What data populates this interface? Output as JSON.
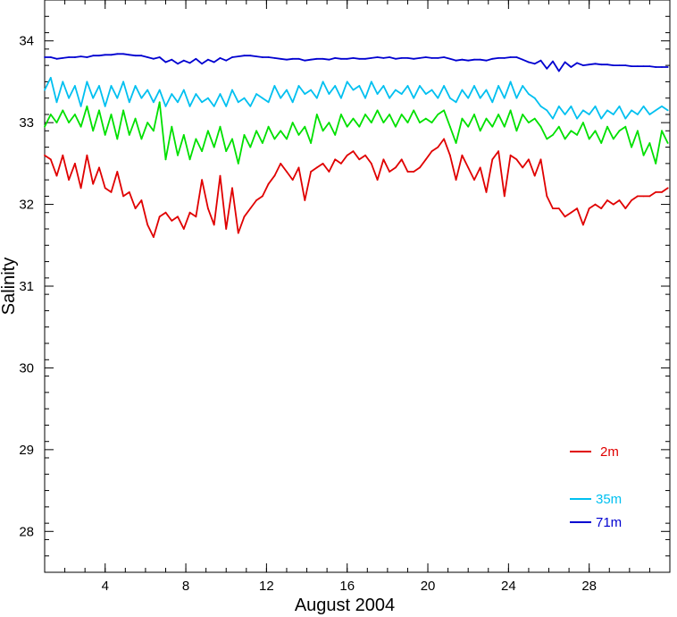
{
  "chart_data": {
    "type": "line",
    "title": "",
    "xlabel": "August 2004",
    "ylabel": "Salinity",
    "xlim": [
      1,
      32
    ],
    "ylim": [
      27.5,
      34.5
    ],
    "grid": false,
    "x_ticks": [
      4,
      8,
      12,
      16,
      20,
      24,
      28
    ],
    "x_tick_labels": [
      "4",
      "8",
      "12",
      "16",
      "20",
      "24",
      "28"
    ],
    "y_ticks": [
      28,
      29,
      30,
      31,
      32,
      33,
      34
    ],
    "y_tick_labels": [
      "28",
      "29",
      "30",
      "31",
      "32",
      "33",
      "34"
    ],
    "legend_position": "bottom-right",
    "series": [
      {
        "name": "2m",
        "color": "#e00000",
        "x": [
          1.0,
          1.3,
          1.6,
          1.9,
          2.2,
          2.5,
          2.8,
          3.1,
          3.4,
          3.7,
          4.0,
          4.3,
          4.6,
          4.9,
          5.2,
          5.5,
          5.8,
          6.1,
          6.4,
          6.7,
          7.0,
          7.3,
          7.6,
          7.9,
          8.2,
          8.5,
          8.8,
          9.1,
          9.4,
          9.7,
          10.0,
          10.3,
          10.6,
          10.9,
          11.2,
          11.5,
          11.8,
          12.1,
          12.4,
          12.7,
          13.0,
          13.3,
          13.6,
          13.9,
          14.2,
          14.5,
          14.8,
          15.1,
          15.4,
          15.7,
          16.0,
          16.3,
          16.6,
          16.9,
          17.2,
          17.5,
          17.8,
          18.1,
          18.4,
          18.7,
          19.0,
          19.3,
          19.6,
          19.9,
          20.2,
          20.5,
          20.8,
          21.1,
          21.4,
          21.7,
          22.0,
          22.3,
          22.6,
          22.9,
          23.2,
          23.5,
          23.8,
          24.1,
          24.4,
          24.7,
          25.0,
          25.3,
          25.6,
          25.9,
          26.2,
          26.5,
          26.8,
          27.1,
          27.4,
          27.7,
          28.0,
          28.3,
          28.6,
          28.9,
          29.2,
          29.5,
          29.8,
          30.1,
          30.4,
          30.7,
          31.0,
          31.3,
          31.6,
          31.9
        ],
        "values": [
          32.6,
          32.55,
          32.35,
          32.6,
          32.3,
          32.5,
          32.2,
          32.6,
          32.25,
          32.45,
          32.2,
          32.15,
          32.4,
          32.1,
          32.15,
          31.95,
          32.05,
          31.75,
          31.6,
          31.85,
          31.9,
          31.8,
          31.85,
          31.7,
          31.9,
          31.85,
          32.3,
          31.95,
          31.75,
          32.35,
          31.7,
          32.2,
          31.65,
          31.85,
          31.95,
          32.05,
          32.1,
          32.25,
          32.35,
          32.5,
          32.4,
          32.3,
          32.45,
          32.05,
          32.4,
          32.45,
          32.5,
          32.4,
          32.55,
          32.5,
          32.6,
          32.65,
          32.55,
          32.6,
          32.5,
          32.3,
          32.55,
          32.4,
          32.45,
          32.55,
          32.4,
          32.4,
          32.45,
          32.55,
          32.65,
          32.7,
          32.8,
          32.6,
          32.3,
          32.6,
          32.45,
          32.3,
          32.45,
          32.15,
          32.55,
          32.65,
          32.1,
          32.6,
          32.55,
          32.45,
          32.55,
          32.35,
          32.55,
          32.1,
          31.95,
          31.95,
          31.85,
          31.9,
          31.95,
          31.75,
          31.95,
          32.0,
          31.95,
          32.05,
          32.0,
          32.05,
          31.95,
          32.05,
          32.1,
          32.1,
          32.1,
          32.15,
          32.15,
          32.2
        ]
      },
      {
        "name": "35m",
        "color": "#00c0f0",
        "x": [
          1.0,
          1.3,
          1.6,
          1.9,
          2.2,
          2.5,
          2.8,
          3.1,
          3.4,
          3.7,
          4.0,
          4.3,
          4.6,
          4.9,
          5.2,
          5.5,
          5.8,
          6.1,
          6.4,
          6.7,
          7.0,
          7.3,
          7.6,
          7.9,
          8.2,
          8.5,
          8.8,
          9.1,
          9.4,
          9.7,
          10.0,
          10.3,
          10.6,
          10.9,
          11.2,
          11.5,
          11.8,
          12.1,
          12.4,
          12.7,
          13.0,
          13.3,
          13.6,
          13.9,
          14.2,
          14.5,
          14.8,
          15.1,
          15.4,
          15.7,
          16.0,
          16.3,
          16.6,
          16.9,
          17.2,
          17.5,
          17.8,
          18.1,
          18.4,
          18.7,
          19.0,
          19.3,
          19.6,
          19.9,
          20.2,
          20.5,
          20.8,
          21.1,
          21.4,
          21.7,
          22.0,
          22.3,
          22.6,
          22.9,
          23.2,
          23.5,
          23.8,
          24.1,
          24.4,
          24.7,
          25.0,
          25.3,
          25.6,
          25.9,
          26.2,
          26.5,
          26.8,
          27.1,
          27.4,
          27.7,
          28.0,
          28.3,
          28.6,
          28.9,
          29.2,
          29.5,
          29.8,
          30.1,
          30.4,
          30.7,
          31.0,
          31.3,
          31.6,
          31.9
        ],
        "values": [
          33.4,
          33.55,
          33.25,
          33.5,
          33.3,
          33.45,
          33.2,
          33.5,
          33.3,
          33.45,
          33.2,
          33.45,
          33.3,
          33.5,
          33.25,
          33.45,
          33.3,
          33.4,
          33.25,
          33.4,
          33.2,
          33.35,
          33.25,
          33.4,
          33.2,
          33.35,
          33.25,
          33.3,
          33.2,
          33.35,
          33.2,
          33.4,
          33.25,
          33.3,
          33.2,
          33.35,
          33.3,
          33.25,
          33.45,
          33.3,
          33.4,
          33.25,
          33.45,
          33.35,
          33.4,
          33.3,
          33.5,
          33.35,
          33.45,
          33.3,
          33.5,
          33.4,
          33.45,
          33.3,
          33.5,
          33.35,
          33.45,
          33.3,
          33.4,
          33.35,
          33.45,
          33.3,
          33.45,
          33.35,
          33.4,
          33.3,
          33.45,
          33.3,
          33.25,
          33.4,
          33.3,
          33.45,
          33.3,
          33.4,
          33.25,
          33.45,
          33.3,
          33.5,
          33.3,
          33.45,
          33.35,
          33.3,
          33.2,
          33.15,
          33.05,
          33.2,
          33.1,
          33.2,
          33.05,
          33.15,
          33.1,
          33.2,
          33.05,
          33.15,
          33.1,
          33.2,
          33.05,
          33.15,
          33.1,
          33.2,
          33.1,
          33.15,
          33.2,
          33.15
        ]
      },
      {
        "name": "",
        "color": "#00e000",
        "x": [
          1.0,
          1.3,
          1.6,
          1.9,
          2.2,
          2.5,
          2.8,
          3.1,
          3.4,
          3.7,
          4.0,
          4.3,
          4.6,
          4.9,
          5.2,
          5.5,
          5.8,
          6.1,
          6.4,
          6.7,
          7.0,
          7.3,
          7.6,
          7.9,
          8.2,
          8.5,
          8.8,
          9.1,
          9.4,
          9.7,
          10.0,
          10.3,
          10.6,
          10.9,
          11.2,
          11.5,
          11.8,
          12.1,
          12.4,
          12.7,
          13.0,
          13.3,
          13.6,
          13.9,
          14.2,
          14.5,
          14.8,
          15.1,
          15.4,
          15.7,
          16.0,
          16.3,
          16.6,
          16.9,
          17.2,
          17.5,
          17.8,
          18.1,
          18.4,
          18.7,
          19.0,
          19.3,
          19.6,
          19.9,
          20.2,
          20.5,
          20.8,
          21.1,
          21.4,
          21.7,
          22.0,
          22.3,
          22.6,
          22.9,
          23.2,
          23.5,
          23.8,
          24.1,
          24.4,
          24.7,
          25.0,
          25.3,
          25.6,
          25.9,
          26.2,
          26.5,
          26.8,
          27.1,
          27.4,
          27.7,
          28.0,
          28.3,
          28.6,
          28.9,
          29.2,
          29.5,
          29.8,
          30.1,
          30.4,
          30.7,
          31.0,
          31.3,
          31.6,
          31.9
        ],
        "values": [
          32.95,
          33.1,
          33.0,
          33.15,
          33.0,
          33.1,
          32.95,
          33.2,
          32.9,
          33.15,
          32.85,
          33.1,
          32.8,
          33.15,
          32.85,
          33.05,
          32.8,
          33.0,
          32.9,
          33.25,
          32.55,
          32.95,
          32.6,
          32.85,
          32.55,
          32.8,
          32.65,
          32.9,
          32.7,
          32.95,
          32.65,
          32.8,
          32.5,
          32.85,
          32.7,
          32.9,
          32.75,
          32.95,
          32.8,
          32.9,
          32.8,
          33.0,
          32.85,
          32.95,
          32.75,
          33.1,
          32.9,
          33.0,
          32.85,
          33.1,
          32.95,
          33.05,
          32.95,
          33.1,
          33.0,
          33.15,
          33.0,
          33.1,
          32.95,
          33.1,
          33.0,
          33.15,
          33.0,
          33.05,
          33.0,
          33.1,
          33.15,
          32.95,
          32.75,
          33.05,
          32.95,
          33.1,
          32.9,
          33.05,
          32.95,
          33.1,
          32.95,
          33.15,
          32.9,
          33.1,
          33.0,
          33.05,
          32.95,
          32.8,
          32.85,
          32.95,
          32.8,
          32.9,
          32.85,
          33.0,
          32.8,
          32.9,
          32.75,
          32.95,
          32.8,
          32.9,
          32.95,
          32.7,
          32.9,
          32.6,
          32.75,
          32.5,
          32.9,
          32.75
        ]
      },
      {
        "name": "71m",
        "color": "#0000d0",
        "x": [
          1.0,
          1.3,
          1.6,
          1.9,
          2.2,
          2.5,
          2.8,
          3.1,
          3.4,
          3.7,
          4.0,
          4.3,
          4.6,
          4.9,
          5.2,
          5.5,
          5.8,
          6.1,
          6.4,
          6.7,
          7.0,
          7.3,
          7.6,
          7.9,
          8.2,
          8.5,
          8.8,
          9.1,
          9.4,
          9.7,
          10.0,
          10.3,
          10.6,
          10.9,
          11.2,
          11.5,
          11.8,
          12.1,
          12.4,
          12.7,
          13.0,
          13.3,
          13.6,
          13.9,
          14.2,
          14.5,
          14.8,
          15.1,
          15.4,
          15.7,
          16.0,
          16.3,
          16.6,
          16.9,
          17.2,
          17.5,
          17.8,
          18.1,
          18.4,
          18.7,
          19.0,
          19.3,
          19.6,
          19.9,
          20.2,
          20.5,
          20.8,
          21.1,
          21.4,
          21.7,
          22.0,
          22.3,
          22.6,
          22.9,
          23.2,
          23.5,
          23.8,
          24.1,
          24.4,
          24.7,
          25.0,
          25.3,
          25.6,
          25.9,
          26.2,
          26.5,
          26.8,
          27.1,
          27.4,
          27.7,
          28.0,
          28.3,
          28.6,
          28.9,
          29.2,
          29.5,
          29.8,
          30.1,
          30.4,
          30.7,
          31.0,
          31.3,
          31.6,
          31.9
        ],
        "values": [
          33.8,
          33.8,
          33.78,
          33.79,
          33.8,
          33.8,
          33.81,
          33.8,
          33.82,
          33.82,
          33.83,
          33.83,
          33.84,
          33.84,
          33.83,
          33.82,
          33.82,
          33.8,
          33.78,
          33.8,
          33.74,
          33.77,
          33.72,
          33.76,
          33.73,
          33.78,
          33.72,
          33.77,
          33.74,
          33.79,
          33.76,
          33.8,
          33.81,
          33.82,
          33.82,
          33.81,
          33.8,
          33.8,
          33.79,
          33.78,
          33.77,
          33.78,
          33.78,
          33.76,
          33.77,
          33.78,
          33.78,
          33.77,
          33.79,
          33.78,
          33.78,
          33.79,
          33.78,
          33.78,
          33.79,
          33.8,
          33.79,
          33.8,
          33.78,
          33.79,
          33.79,
          33.78,
          33.79,
          33.8,
          33.79,
          33.79,
          33.8,
          33.78,
          33.76,
          33.77,
          33.76,
          33.77,
          33.77,
          33.76,
          33.78,
          33.79,
          33.79,
          33.8,
          33.8,
          33.77,
          33.74,
          33.72,
          33.76,
          33.66,
          33.75,
          33.63,
          33.74,
          33.68,
          33.73,
          33.7,
          33.71,
          33.72,
          33.71,
          33.71,
          33.7,
          33.7,
          33.7,
          33.69,
          33.69,
          33.69,
          33.69,
          33.68,
          33.68,
          33.68
        ]
      }
    ],
    "legend": [
      {
        "label": "2m",
        "color": "#e00000"
      },
      {
        "label": "35m",
        "color": "#00c0f0"
      },
      {
        "label": "71m",
        "color": "#0000d0"
      }
    ]
  }
}
